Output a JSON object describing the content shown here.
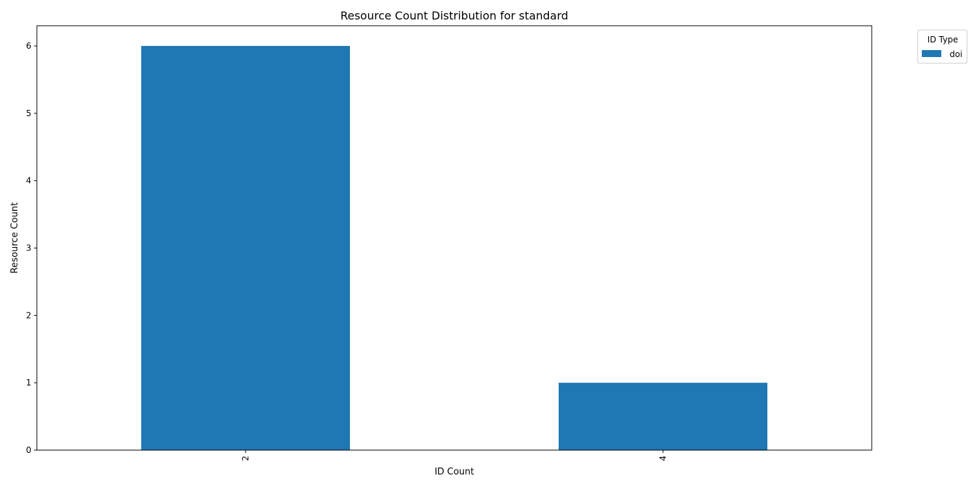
{
  "chart_data": {
    "type": "bar",
    "title": "Resource Count Distribution for standard",
    "xlabel": "ID Count",
    "ylabel": "Resource Count",
    "categories": [
      "2",
      "4"
    ],
    "series": [
      {
        "name": "doi",
        "values": [
          6,
          1
        ],
        "color": "#1f77b4"
      }
    ],
    "ylim": [
      0,
      6.3
    ],
    "yticks": [
      0,
      1,
      2,
      3,
      4,
      5,
      6
    ],
    "xtick_rotation": "vertical",
    "legend": {
      "title": "ID Type",
      "placement": "outside-top-right"
    },
    "grid": false
  }
}
